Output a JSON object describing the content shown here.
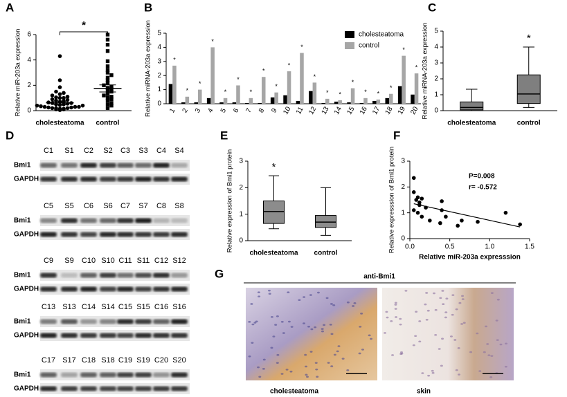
{
  "chart_data": [
    {
      "panel": "A",
      "type": "dotplot",
      "ylabel": "Relative miR-203a expression",
      "categories": [
        "cholesteatoma",
        "control"
      ],
      "values": [
        [
          0.05,
          0.1,
          0.1,
          0.15,
          0.15,
          0.2,
          0.2,
          0.2,
          0.25,
          0.25,
          0.3,
          0.3,
          0.3,
          0.35,
          0.4,
          0.4,
          0.45,
          0.5,
          0.5,
          0.55,
          0.6,
          0.6,
          0.65,
          0.7,
          0.75,
          0.8,
          0.85,
          0.9,
          1.0,
          1.0,
          1.05,
          1.1,
          1.2,
          1.3,
          1.4,
          1.5,
          1.85,
          2.4,
          4.3
        ],
        [
          0.2,
          0.4,
          0.5,
          0.6,
          0.8,
          0.9,
          1.0,
          1.1,
          1.2,
          1.3,
          1.5,
          1.6,
          1.7,
          1.8,
          1.9,
          2.0,
          2.2,
          2.4,
          2.6,
          2.8,
          3.0,
          3.2,
          3.5,
          3.9,
          4.7,
          5.2,
          5.6,
          6.0
        ]
      ],
      "means": [
        0.62,
        1.75
      ],
      "sem": [
        0.13,
        0.28
      ],
      "ylim": [
        0,
        6
      ],
      "yticks": [
        0,
        2,
        4,
        6
      ],
      "significance": "*"
    },
    {
      "panel": "B",
      "type": "bar",
      "ylabel": "Relative miRNA-203a  expression",
      "categories": [
        "1",
        "2",
        "3",
        "4",
        "5",
        "6",
        "7",
        "8",
        "9",
        "10",
        "11",
        "12",
        "13",
        "14",
        "15",
        "16",
        "17",
        "18",
        "19",
        "20"
      ],
      "series": [
        {
          "name": "cholesteatoma",
          "color": "#000000",
          "values": [
            1.4,
            0.1,
            0.1,
            0.4,
            0.1,
            0.1,
            0.05,
            0.05,
            0.45,
            0.6,
            0.2,
            0.9,
            0.05,
            0.15,
            0.1,
            0.05,
            0.2,
            0.4,
            1.25,
            0.65
          ]
        },
        {
          "name": "control",
          "color": "#a6a6a6",
          "values": [
            2.7,
            0.5,
            1.0,
            4.0,
            0.4,
            1.3,
            0.4,
            1.9,
            0.8,
            2.3,
            3.6,
            1.5,
            0.35,
            0.25,
            1.1,
            0.4,
            0.3,
            0.7,
            3.4,
            2.15
          ]
        }
      ],
      "significance": [
        "*",
        "*",
        "*",
        "*",
        "*",
        "*",
        "*",
        "*",
        "*",
        "*",
        "*",
        "*",
        "*",
        "*",
        "*",
        "*",
        "*",
        "*",
        "*",
        "*"
      ],
      "ylim": [
        0,
        5
      ],
      "yticks": [
        0,
        1,
        2,
        3,
        4,
        5
      ],
      "legend": "upper right"
    },
    {
      "panel": "C",
      "type": "box",
      "ylabel": "Relative miRNA-203a expression",
      "categories": [
        "cholesteatoma",
        "control"
      ],
      "color": "#7f7f7f",
      "boxes": [
        {
          "min": 0,
          "q1": 0.05,
          "median": 0.2,
          "q3": 0.55,
          "max": 1.35
        },
        {
          "min": 0.2,
          "q1": 0.45,
          "median": 1.05,
          "q3": 2.25,
          "max": 4.0
        }
      ],
      "significance": [
        null,
        "*"
      ],
      "ylim": [
        0,
        5
      ],
      "yticks": [
        0,
        1,
        2,
        3,
        4,
        5
      ]
    },
    {
      "panel": "E",
      "type": "box",
      "ylabel": "Relative expression of Bmi1 protein",
      "categories": [
        "cholesteatoma",
        "control"
      ],
      "color": "#8c8c8c",
      "boxes": [
        {
          "min": 0.45,
          "q1": 0.65,
          "median": 1.1,
          "q3": 1.5,
          "max": 2.45
        },
        {
          "min": 0.2,
          "q1": 0.5,
          "median": 0.7,
          "q3": 0.95,
          "max": 2.0
        }
      ],
      "significance": [
        "*",
        null
      ],
      "ylim": [
        0,
        3
      ],
      "yticks": [
        0,
        1,
        2,
        3
      ]
    },
    {
      "panel": "F",
      "type": "scatter",
      "xlabel": "Relative miR-203a expresssion",
      "ylabel": "Relative expresssion of Bmi1 protein",
      "x": [
        0.05,
        0.05,
        0.1,
        0.08,
        0.12,
        0.15,
        0.2,
        0.05,
        0.1,
        0.15,
        0.25,
        0.4,
        0.4,
        0.45,
        0.38,
        0.6,
        0.65,
        0.85,
        1.2,
        1.38,
        0.12
      ],
      "y": [
        2.35,
        1.8,
        1.6,
        1.5,
        1.3,
        1.55,
        1.2,
        1.1,
        1.0,
        0.85,
        0.7,
        1.1,
        1.45,
        0.85,
        0.6,
        0.5,
        0.7,
        0.65,
        1.0,
        0.55,
        1.4
      ],
      "fit": {
        "x": [
          0.05,
          1.38
        ],
        "y": [
          1.35,
          0.45
        ]
      },
      "annotations": [
        "P=0.008",
        "r= -0.572"
      ],
      "xlim": [
        0,
        1.5
      ],
      "xticks": [
        {
          "value": 0,
          "label": "0.0"
        },
        0.5,
        {
          "value": 1,
          "label": "1.0"
        },
        1.5
      ],
      "ylim": [
        0,
        3
      ],
      "yticks": [
        0,
        1,
        2,
        3
      ]
    }
  ],
  "blot": {
    "panel": "D",
    "bands": [
      "Bmi1",
      "GAPDH"
    ],
    "rows": [
      [
        "C1",
        "S1",
        "C2",
        "S2",
        "C3",
        "S3",
        "C4",
        "S4"
      ],
      [
        "C5",
        "S5",
        "C6",
        "S6",
        "C7",
        "S7",
        "C8",
        "S8"
      ],
      [
        "C9",
        "S9",
        "C10",
        "S10",
        "C11",
        "S11",
        "C12",
        "S12"
      ],
      [
        "C13",
        "S13",
        "C14",
        "S14",
        "C15",
        "S15",
        "C16",
        "S16"
      ],
      [
        "C17",
        "S17",
        "C18",
        "S18",
        "C19",
        "S19",
        "C20",
        "S20"
      ]
    ]
  },
  "histology": {
    "panel": "G",
    "title": "anti-Bmi1",
    "images": [
      "cholesteatoma",
      "skin"
    ]
  }
}
